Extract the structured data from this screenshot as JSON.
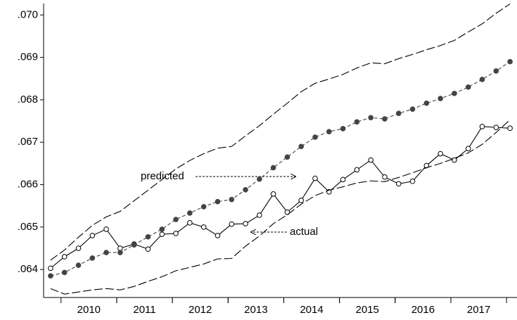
{
  "chart_data": {
    "type": "line",
    "categories": [
      null,
      null,
      "2010",
      null,
      null,
      null,
      "2011",
      null,
      null,
      null,
      "2012",
      null,
      null,
      null,
      "2013",
      null,
      null,
      null,
      "2014",
      null,
      null,
      null,
      "2015",
      null,
      null,
      null,
      "2016",
      null,
      null,
      null,
      "2017",
      null,
      null,
      null
    ],
    "ylim": [
      0.06334,
      0.07027
    ],
    "yticks": [
      {
        "value": 0.064,
        "label": ".064"
      },
      {
        "value": 0.065,
        "label": ".065"
      },
      {
        "value": 0.066,
        "label": ".066"
      },
      {
        "value": 0.067,
        "label": ".067"
      },
      {
        "value": 0.068,
        "label": ".068"
      },
      {
        "value": 0.069,
        "label": ".069"
      },
      {
        "value": 0.07,
        "label": ".070"
      }
    ],
    "series": [
      {
        "name": "actual",
        "color": "#000000",
        "marker": "open-circle",
        "values": [
          0.06403,
          0.0643,
          0.0645,
          0.0648,
          0.06495,
          0.0645,
          0.0646,
          0.06448,
          0.06483,
          0.06485,
          0.0651,
          0.065,
          0.0648,
          0.06507,
          0.06508,
          0.06528,
          0.06578,
          0.06535,
          0.06563,
          0.06615,
          0.06583,
          0.06612,
          0.06635,
          0.06658,
          0.06618,
          0.06602,
          0.06608,
          0.06645,
          0.06673,
          0.06658,
          0.06685,
          0.06737,
          0.06735,
          0.06733
        ]
      },
      {
        "name": "predicted",
        "color": "#444444",
        "marker": "filled-circle",
        "values": [
          0.06385,
          0.06393,
          0.0641,
          0.06427,
          0.0644,
          0.0644,
          0.06458,
          0.06477,
          0.06495,
          0.06518,
          0.06533,
          0.06548,
          0.0656,
          0.06565,
          0.06588,
          0.06613,
          0.0664,
          0.06665,
          0.0669,
          0.06712,
          0.06725,
          0.06732,
          0.06748,
          0.06758,
          0.06755,
          0.06768,
          0.06778,
          0.06792,
          0.06803,
          0.06815,
          0.0683,
          0.06848,
          0.06868,
          0.0689
        ]
      },
      {
        "color": "#000000",
        "values": [
          0.06422,
          0.06446,
          0.06476,
          0.06504,
          0.06524,
          0.06537,
          0.06562,
          0.06587,
          0.06612,
          0.06637,
          0.06657,
          0.06673,
          0.06686,
          0.0669,
          0.06715,
          0.06739,
          0.06766,
          0.06792,
          0.06819,
          0.06839,
          0.06849,
          0.0686,
          0.06875,
          0.06887,
          0.06885,
          0.06897,
          0.06907,
          0.06918,
          0.06928,
          0.0694,
          0.0696,
          0.06979,
          0.07004,
          0.07026
        ]
      },
      {
        "color": "#000000",
        "values": [
          0.06355,
          0.06342,
          0.06347,
          0.06352,
          0.06355,
          0.06352,
          0.0636,
          0.06372,
          0.06383,
          0.06397,
          0.06405,
          0.06413,
          0.06425,
          0.06426,
          0.06455,
          0.06479,
          0.06508,
          0.06529,
          0.06554,
          0.06574,
          0.06587,
          0.06595,
          0.06604,
          0.06609,
          0.06607,
          0.06617,
          0.06628,
          0.0664,
          0.0665,
          0.06662,
          0.06675,
          0.06695,
          0.06723,
          0.06753
        ]
      }
    ]
  }
}
